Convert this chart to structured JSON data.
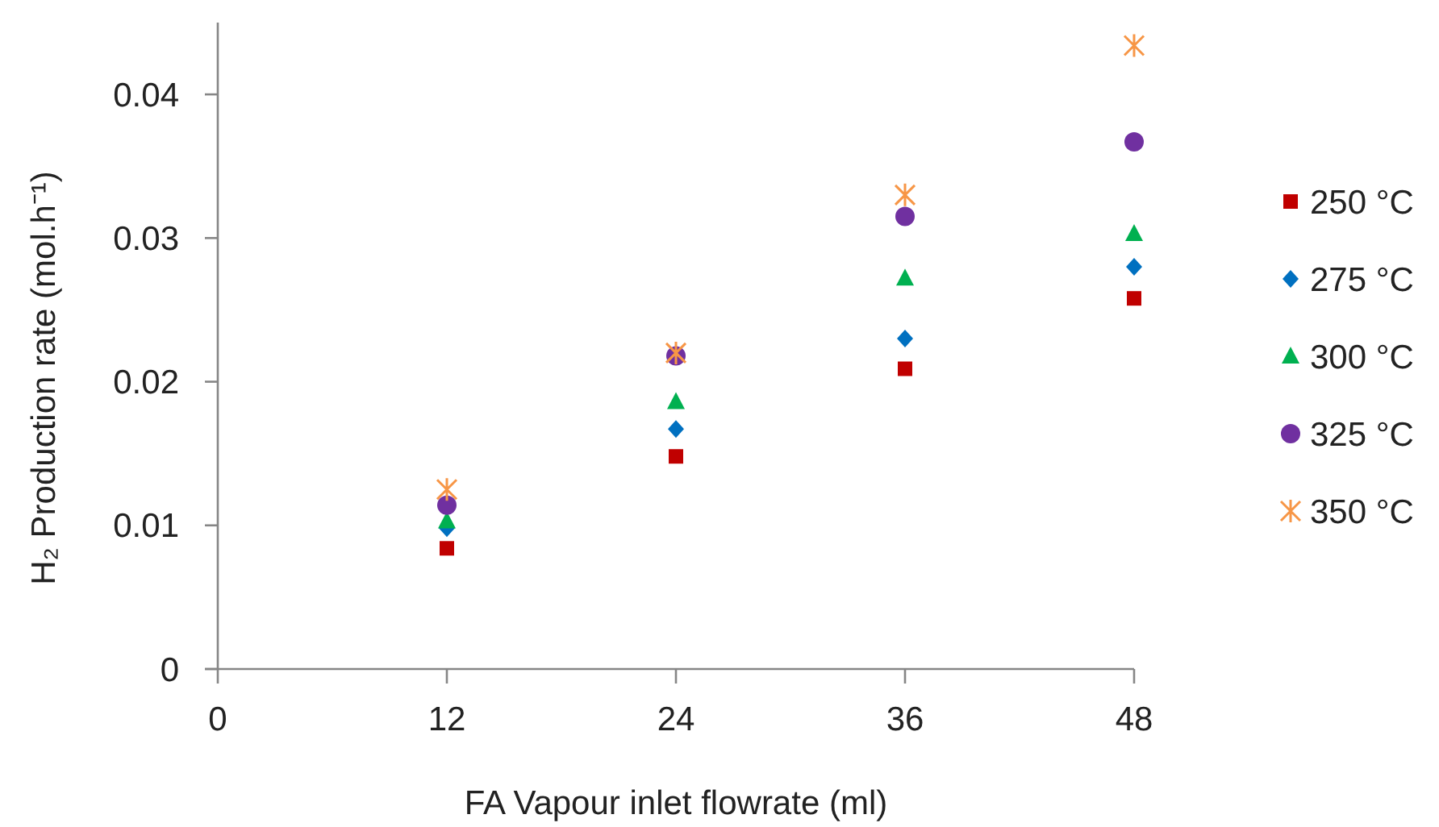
{
  "chart_data": {
    "type": "scatter",
    "xlabel": "FA Vapour inlet flowrate (ml)",
    "ylabel": "H₂ Production rate (mol.h⁻¹)",
    "x": [
      12,
      24,
      36,
      48
    ],
    "xlim": [
      0,
      48
    ],
    "xticks": [
      0,
      12,
      24,
      36,
      48
    ],
    "ylim": [
      0,
      0.045
    ],
    "yticks": [
      0,
      0.01,
      0.02,
      0.03,
      0.04
    ],
    "grid": false,
    "legend": "right",
    "series": [
      {
        "name": "250 °C",
        "color": "#c00000",
        "marker": "square",
        "values": [
          0.0084,
          0.0148,
          0.0209,
          0.0258
        ]
      },
      {
        "name": "275 °C",
        "color": "#0070c0",
        "marker": "diamond",
        "values": [
          0.0098,
          0.0167,
          0.023,
          0.028
        ]
      },
      {
        "name": "300 °C",
        "color": "#00b050",
        "marker": "triangle",
        "values": [
          0.0103,
          0.0186,
          0.0272,
          0.0303
        ]
      },
      {
        "name": "325 °C",
        "color": "#7030a0",
        "marker": "circle",
        "values": [
          0.0114,
          0.0218,
          0.0315,
          0.0367
        ]
      },
      {
        "name": "350 °C",
        "color": "#f79646",
        "marker": "cross",
        "values": [
          0.0125,
          0.022,
          0.033,
          0.0434
        ]
      }
    ]
  }
}
